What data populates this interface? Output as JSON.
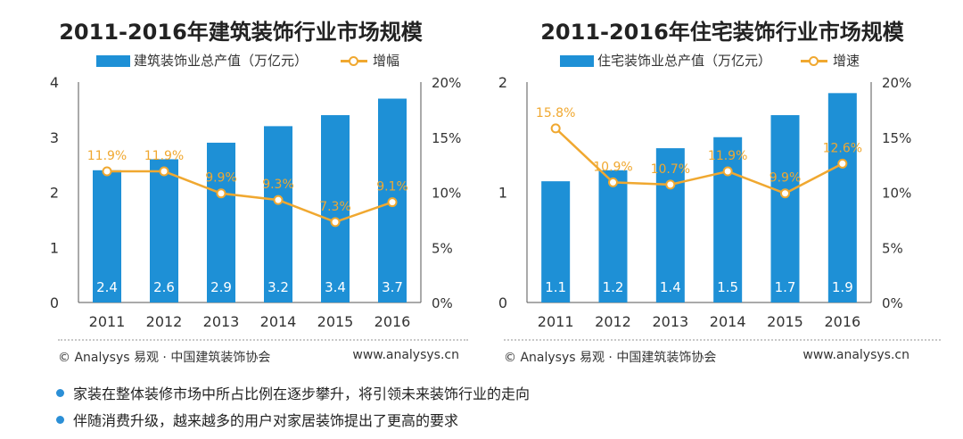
{
  "chart_data": [
    {
      "type": "bar+line",
      "title": "2011-2016年建筑装饰行业市场规模",
      "categories": [
        "2011",
        "2012",
        "2013",
        "2014",
        "2015",
        "2016"
      ],
      "series": [
        {
          "name": "建筑装饰业总产值（万亿元）",
          "type": "bar",
          "axis": "left",
          "values": [
            2.4,
            2.6,
            2.9,
            3.2,
            3.4,
            3.7
          ],
          "labels": [
            "2.4",
            "2.6",
            "2.9",
            "3.2",
            "3.4",
            "3.7"
          ],
          "color": "#1e90d6"
        },
        {
          "name": "增幅",
          "type": "line",
          "axis": "right",
          "values": [
            11.9,
            11.9,
            9.9,
            9.3,
            7.3,
            9.1
          ],
          "labels": [
            "11.9%",
            "11.9%",
            "9.9%",
            "9.3%",
            "7.3%",
            "9.1%"
          ],
          "color": "#f0a830"
        }
      ],
      "ylim_left": [
        0,
        4
      ],
      "yticks_left": [
        "0",
        "1",
        "2",
        "3",
        "4"
      ],
      "ylim_right": [
        0,
        20
      ],
      "yticks_right": [
        "0%",
        "5%",
        "10%",
        "15%",
        "20%"
      ],
      "legend_position": "top",
      "grid": false
    },
    {
      "type": "bar+line",
      "title": "2011-2016年住宅装饰行业市场规模",
      "categories": [
        "2011",
        "2012",
        "2013",
        "2014",
        "2015",
        "2016"
      ],
      "series": [
        {
          "name": "住宅装饰业总产值（万亿元）",
          "type": "bar",
          "axis": "left",
          "values": [
            1.1,
            1.2,
            1.4,
            1.5,
            1.7,
            1.9
          ],
          "labels": [
            "1.1",
            "1.2",
            "1.4",
            "1.5",
            "1.7",
            "1.9"
          ],
          "color": "#1e90d6"
        },
        {
          "name": "增速",
          "type": "line",
          "axis": "right",
          "values": [
            15.8,
            10.9,
            10.7,
            11.9,
            9.9,
            12.6
          ],
          "labels": [
            "15.8%",
            "10.9%",
            "10.7%",
            "11.9%",
            "9.9%",
            "12.6%"
          ],
          "color": "#f0a830"
        }
      ],
      "ylim_left": [
        0,
        2
      ],
      "yticks_left": [
        "0",
        "1",
        "2"
      ],
      "ylim_right": [
        0,
        20
      ],
      "yticks_right": [
        "0%",
        "5%",
        "10%",
        "15%",
        "20%"
      ],
      "legend_position": "top",
      "grid": false
    }
  ],
  "footer": {
    "source_left": "© Analysys 易观 · 中国建筑装饰协会",
    "website_left": "www.analysys.cn",
    "source_right": "© Analysys 易观 · 中国建筑装饰协会",
    "website_right": "www.analysys.cn"
  },
  "bullets": [
    "家装在整体装修市场中所占比例在逐步攀升，将引领未来装饰行业的走向",
    "伴随消费升级，越来越多的用户对家居装饰提出了更高的要求"
  ]
}
